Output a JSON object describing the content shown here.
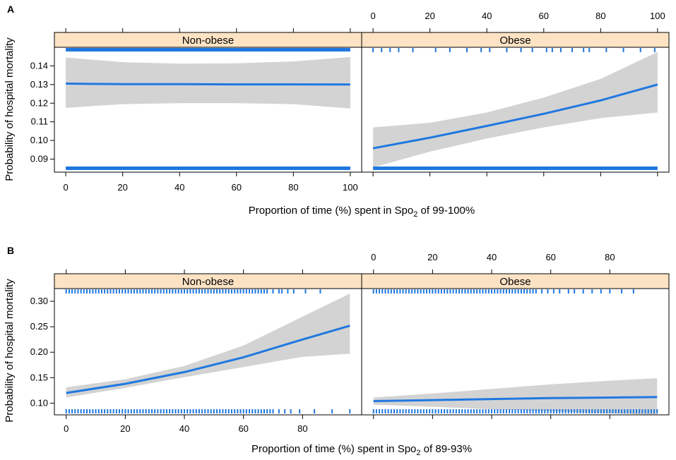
{
  "colors": {
    "line": "#1f78e0",
    "band": "#d3d3d3",
    "strip": "#fde3c4",
    "rug": "#1f78e0",
    "axis": "#000000"
  },
  "figure_labels": [
    "A",
    "B"
  ],
  "chart_data": [
    {
      "type": "line",
      "panel": "A",
      "ylabel": "Probability of hospital mortality",
      "xlabel": {
        "prefix": "Proportion of time (%) spent in Spo",
        "sub": "2",
        "suffix": " of 99-100%"
      },
      "ylim": [
        0.083,
        0.15
      ],
      "yticks": [
        0.09,
        0.1,
        0.11,
        0.12,
        0.13,
        0.14
      ],
      "ytick_labels": [
        "0.09",
        "0.10",
        "0.11",
        "0.12",
        "0.13",
        "0.14"
      ],
      "panels": [
        {
          "name": "Non-obese",
          "xlim": [
            -4,
            104
          ],
          "xticks": [
            0,
            20,
            40,
            60,
            80,
            100
          ],
          "xtick_labels": [
            "0",
            "20",
            "40",
            "60",
            "80",
            "100"
          ],
          "x": [
            0,
            20,
            40,
            60,
            80,
            100
          ],
          "y": [
            0.1305,
            0.1302,
            0.1302,
            0.1301,
            0.1301,
            0.13
          ],
          "lower": [
            0.1175,
            0.1195,
            0.12,
            0.12,
            0.1195,
            0.1172
          ],
          "upper": [
            0.1445,
            0.142,
            0.1412,
            0.1414,
            0.1424,
            0.1448
          ],
          "rug_top": "dense",
          "rug_bottom": "dense"
        },
        {
          "name": "Obese",
          "xlim": [
            -4,
            104
          ],
          "xticks": [
            0,
            20,
            40,
            60,
            80,
            100
          ],
          "xtick_labels": [
            "0",
            "20",
            "40",
            "60",
            "80",
            "100"
          ],
          "x": [
            0,
            20,
            40,
            60,
            80,
            100
          ],
          "y": [
            0.0958,
            0.1015,
            0.1078,
            0.1143,
            0.1215,
            0.13
          ],
          "lower": [
            0.0855,
            0.094,
            0.101,
            0.107,
            0.112,
            0.115
          ],
          "upper": [
            0.107,
            0.1095,
            0.115,
            0.123,
            0.133,
            0.1475
          ],
          "rug_top": [
            0,
            3,
            6,
            9,
            14,
            22,
            27,
            33,
            38,
            41,
            47,
            52,
            56,
            61,
            63,
            66,
            70,
            74,
            76,
            82,
            88,
            94,
            99
          ],
          "rug_bottom": "dense"
        }
      ]
    },
    {
      "type": "line",
      "panel": "B",
      "ylabel": "Probability of hospital mortality",
      "xlabel": {
        "prefix": "Proportion of time (%) spent in Spo",
        "sub": "2",
        "suffix": " of 89-93%"
      },
      "ylim": [
        0.077,
        0.325
      ],
      "yticks": [
        0.1,
        0.15,
        0.2,
        0.25,
        0.3
      ],
      "ytick_labels": [
        "0.10",
        "0.15",
        "0.20",
        "0.25",
        "0.30"
      ],
      "panels": [
        {
          "name": "Non-obese",
          "xlim": [
            -4,
            100
          ],
          "xticks": [
            0,
            20,
            40,
            60,
            80
          ],
          "xtick_labels": [
            "0",
            "20",
            "40",
            "60",
            "80"
          ],
          "x": [
            0,
            20,
            40,
            60,
            80,
            96
          ],
          "y": [
            0.12,
            0.138,
            0.161,
            0.19,
            0.225,
            0.252
          ],
          "lower": [
            0.111,
            0.13,
            0.151,
            0.171,
            0.191,
            0.197
          ],
          "upper": [
            0.131,
            0.147,
            0.173,
            0.213,
            0.27,
            0.315
          ],
          "rug_top": [
            0,
            1,
            2,
            3,
            4,
            5,
            6,
            7,
            8,
            9,
            10,
            11,
            12,
            13,
            14,
            15,
            16,
            17,
            18,
            19,
            20,
            21,
            22,
            23,
            24,
            25,
            26,
            27,
            28,
            29,
            30,
            31,
            32,
            33,
            34,
            35,
            36,
            37,
            38,
            39,
            40,
            41,
            42,
            43,
            44,
            45,
            46,
            47,
            48,
            49,
            50,
            51,
            52,
            53,
            54,
            55,
            56,
            57,
            58,
            59,
            60,
            61,
            62,
            63,
            64,
            65,
            66,
            67,
            68,
            70,
            72,
            73,
            75,
            77,
            81,
            86
          ],
          "rug_bottom": [
            0,
            1,
            2,
            3,
            4,
            5,
            6,
            7,
            8,
            9,
            10,
            11,
            12,
            13,
            14,
            15,
            16,
            17,
            18,
            19,
            20,
            21,
            22,
            23,
            24,
            25,
            26,
            27,
            28,
            29,
            30,
            31,
            32,
            33,
            34,
            35,
            36,
            37,
            38,
            39,
            40,
            41,
            42,
            43,
            44,
            45,
            46,
            47,
            48,
            49,
            50,
            51,
            52,
            53,
            54,
            55,
            56,
            57,
            58,
            59,
            60,
            61,
            62,
            63,
            64,
            65,
            66,
            67,
            68,
            69,
            70,
            72,
            74,
            76,
            79,
            84,
            90,
            96
          ]
        },
        {
          "name": "Obese",
          "xlim": [
            -4,
            100
          ],
          "xticks": [
            0,
            20,
            40,
            60,
            80
          ],
          "xtick_labels": [
            "0",
            "20",
            "40",
            "60",
            "80"
          ],
          "x": [
            0,
            20,
            40,
            60,
            80,
            96
          ],
          "y": [
            0.104,
            0.106,
            0.108,
            0.11,
            0.111,
            0.112
          ],
          "lower": [
            0.097,
            0.093,
            0.088,
            0.084,
            0.08,
            0.077
          ],
          "upper": [
            0.111,
            0.119,
            0.128,
            0.137,
            0.144,
            0.149
          ],
          "rug_top": [
            0,
            1,
            2,
            3,
            4,
            5,
            6,
            7,
            8,
            9,
            10,
            11,
            12,
            13,
            14,
            15,
            16,
            17,
            18,
            19,
            20,
            21,
            22,
            23,
            24,
            25,
            26,
            27,
            28,
            29,
            30,
            31,
            32,
            33,
            34,
            35,
            36,
            37,
            38,
            39,
            40,
            41,
            42,
            43,
            44,
            45,
            46,
            47,
            48,
            49,
            50,
            51,
            52,
            53,
            54,
            55,
            57,
            59,
            61,
            63,
            66,
            68,
            71,
            74,
            77,
            80,
            84,
            88
          ],
          "rug_bottom": [
            0,
            1,
            2,
            3,
            4,
            5,
            6,
            7,
            8,
            9,
            10,
            11,
            12,
            13,
            14,
            15,
            16,
            17,
            18,
            19,
            20,
            21,
            22,
            23,
            24,
            25,
            26,
            27,
            28,
            29,
            30,
            31,
            32,
            33,
            34,
            35,
            36,
            37,
            38,
            39,
            40,
            41,
            42,
            43,
            44,
            45,
            46,
            47,
            48,
            49,
            50,
            51,
            52,
            53,
            54,
            55,
            56,
            57,
            58,
            59,
            60,
            61,
            62,
            63,
            64,
            65,
            66,
            67,
            68,
            69,
            70,
            71,
            72,
            73,
            74,
            75,
            76,
            77,
            78,
            79,
            80,
            81,
            82,
            83,
            84,
            85,
            86,
            87,
            88,
            89,
            90,
            91,
            92,
            93,
            94,
            95,
            96
          ]
        }
      ]
    }
  ]
}
